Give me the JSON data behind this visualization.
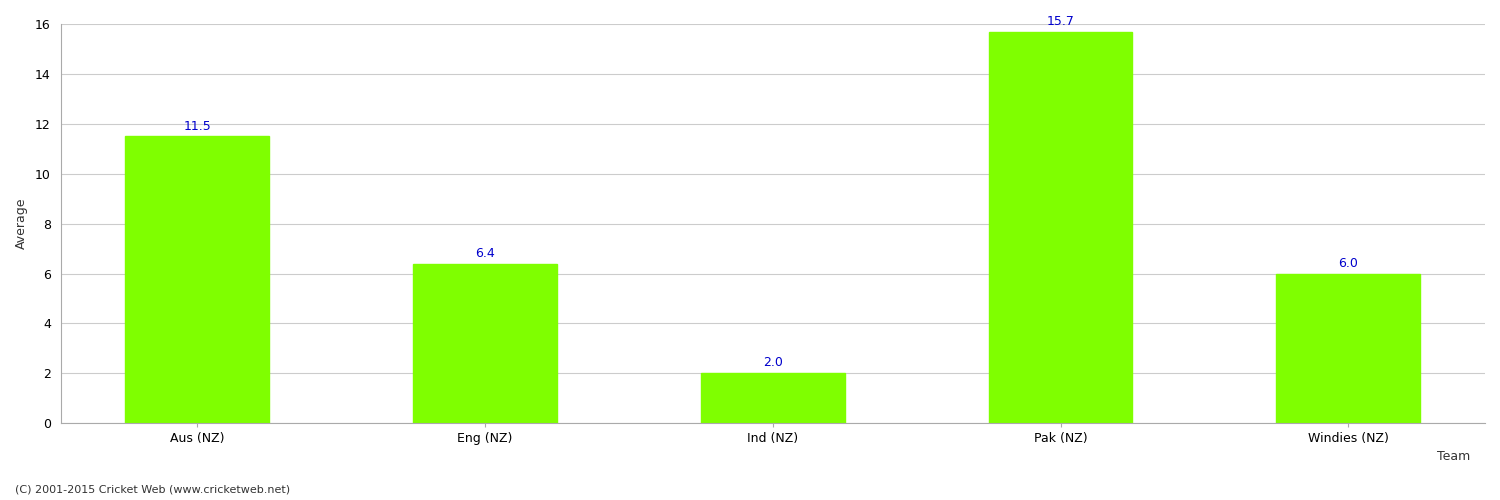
{
  "categories": [
    "Aus (NZ)",
    "Eng (NZ)",
    "Ind (NZ)",
    "Pak (NZ)",
    "Windies (NZ)"
  ],
  "values": [
    11.5,
    6.4,
    2.0,
    15.7,
    6.0
  ],
  "bar_color": "#7fff00",
  "bar_edge_color": "#7fff00",
  "label_color": "#0000cc",
  "xlabel": "Team",
  "ylabel": "Average",
  "ylim": [
    0,
    16
  ],
  "yticks": [
    0,
    2,
    4,
    6,
    8,
    10,
    12,
    14,
    16
  ],
  "grid_color": "#cccccc",
  "background_color": "#ffffff",
  "label_fontsize": 9,
  "axis_label_fontsize": 9,
  "tick_fontsize": 9,
  "footer_text": "(C) 2001-2015 Cricket Web (www.cricketweb.net)",
  "footer_fontsize": 8,
  "footer_color": "#333333"
}
